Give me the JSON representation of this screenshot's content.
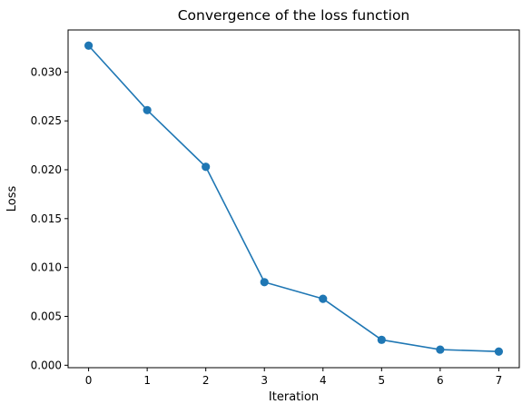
{
  "chart_data": {
    "type": "line",
    "title": "Convergence of the loss function",
    "xlabel": "Iteration",
    "ylabel": "Loss",
    "x": [
      0,
      1,
      2,
      3,
      4,
      5,
      6,
      7
    ],
    "series": [
      {
        "values": [
          0.0327,
          0.0261,
          0.0203,
          0.0085,
          0.0068,
          0.0026,
          0.0016,
          0.0014
        ],
        "color": "#1f77b4",
        "marker": "circle"
      }
    ],
    "xticks": [
      "0",
      "1",
      "2",
      "3",
      "4",
      "5",
      "6",
      "7"
    ],
    "yticks": [
      {
        "value": 0.0,
        "label": "0.000"
      },
      {
        "value": 0.005,
        "label": "0.005"
      },
      {
        "value": 0.01,
        "label": "0.010"
      },
      {
        "value": 0.015,
        "label": "0.015"
      },
      {
        "value": 0.02,
        "label": "0.020"
      },
      {
        "value": 0.025,
        "label": "0.025"
      },
      {
        "value": 0.03,
        "label": "0.030"
      }
    ],
    "xlim": [
      -0.35,
      7.35
    ],
    "ylim": [
      -0.00025,
      0.0343
    ],
    "grid": false,
    "legend": "none"
  }
}
